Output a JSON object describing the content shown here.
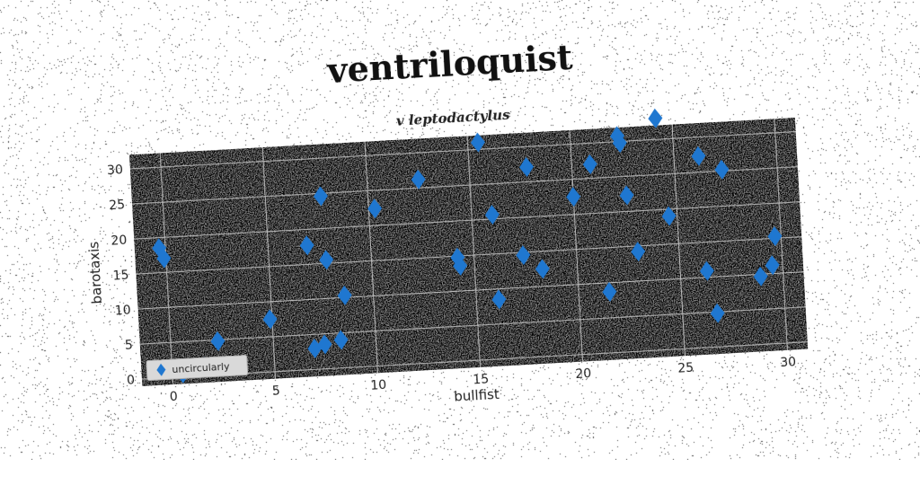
{
  "colors": {
    "background": "#ffffff",
    "plot_area": "#808080",
    "grid": "#bdbdbd",
    "marker": "#1f77d0"
  },
  "chart_data": {
    "type": "scatter",
    "title": "ventriloquist",
    "subtitle": "v leptodactylus",
    "xlabel": "bullfist",
    "ylabel": "barotaxis",
    "xlim": [
      -1.5,
      31
    ],
    "ylim": [
      -1,
      32
    ],
    "xticks": [
      0,
      5,
      10,
      15,
      20,
      25,
      30
    ],
    "yticks": [
      0,
      5,
      10,
      15,
      20,
      25,
      30
    ],
    "grid": true,
    "legend_position": "lower-left",
    "marker": "diamond",
    "series": [
      {
        "name": "uncircularly",
        "points": [
          [
            -0.3,
            18.5
          ],
          [
            -0.1,
            17.0
          ],
          [
            0.5,
            0.5
          ],
          [
            1.6,
            1.3
          ],
          [
            2.3,
            4.8
          ],
          [
            4.9,
            7.5
          ],
          [
            6.9,
            17.7
          ],
          [
            7.0,
            3.0
          ],
          [
            7.5,
            3.5
          ],
          [
            7.7,
            24.6
          ],
          [
            7.8,
            15.5
          ],
          [
            8.3,
            4.0
          ],
          [
            8.6,
            10.3
          ],
          [
            10.3,
            22.4
          ],
          [
            12.5,
            26.2
          ],
          [
            14.2,
            14.8
          ],
          [
            14.3,
            13.6
          ],
          [
            15.5,
            31.0
          ],
          [
            16.0,
            20.6
          ],
          [
            16.1,
            8.5
          ],
          [
            17.4,
            14.6
          ],
          [
            17.8,
            27.1
          ],
          [
            18.3,
            12.5
          ],
          [
            20.0,
            22.5
          ],
          [
            20.9,
            27.0
          ],
          [
            21.5,
            8.7
          ],
          [
            22.3,
            30.8
          ],
          [
            22.4,
            29.8
          ],
          [
            22.6,
            22.3
          ],
          [
            23.0,
            14.2
          ],
          [
            24.2,
            33.0
          ],
          [
            24.6,
            19.0
          ],
          [
            26.2,
            27.3
          ],
          [
            26.3,
            10.9
          ],
          [
            26.7,
            4.8
          ],
          [
            27.3,
            25.2
          ],
          [
            28.9,
            9.7
          ],
          [
            29.5,
            11.2
          ],
          [
            29.7,
            15.3
          ]
        ]
      }
    ]
  }
}
